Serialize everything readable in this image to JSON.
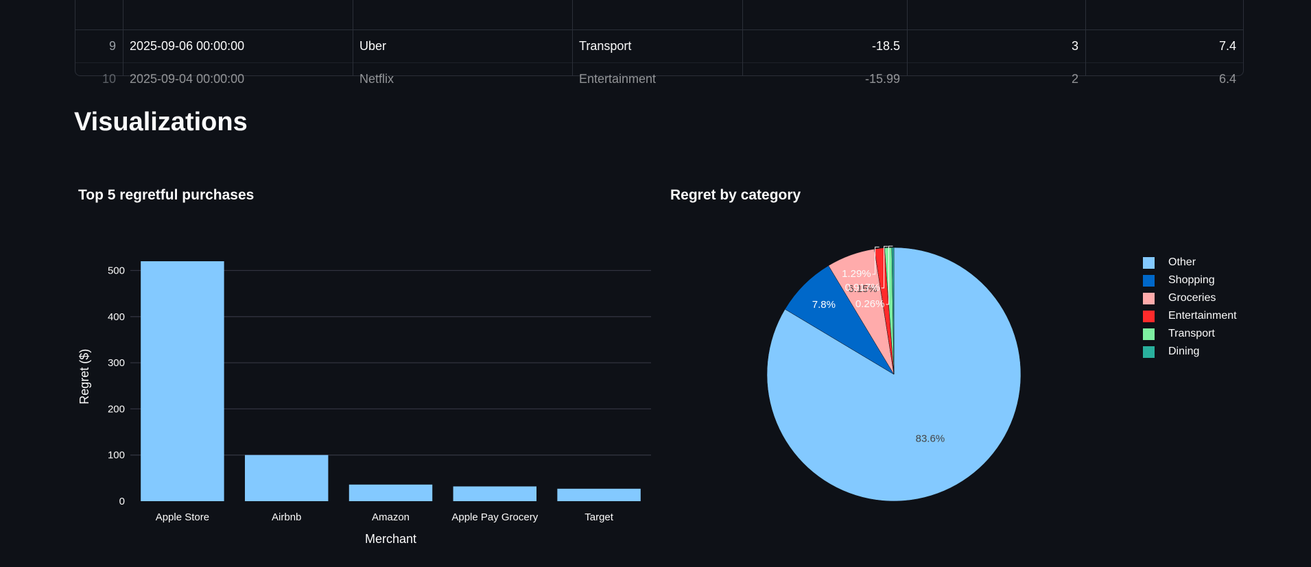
{
  "table": {
    "rows": [
      {
        "index": "9",
        "date": "2025-09-06 00:00:00",
        "merchant": "Uber",
        "category": "Transport",
        "amount": "-18.5",
        "col5": "3",
        "col6": "7.4"
      },
      {
        "index": "10",
        "date": "2025-09-04 00:00:00",
        "merchant": "Netflix",
        "category": "Entertainment",
        "amount": "-15.99",
        "col5": "2",
        "col6": "6.4"
      }
    ]
  },
  "section_title": "Visualizations",
  "bar_chart": {
    "title": "Top 5 regretful purchases"
  },
  "pie_chart": {
    "title": "Regret by category"
  },
  "colors": {
    "background": "#0e1117",
    "bar": "#83c9ff",
    "grid": "#31333f",
    "Other": "#83c9ff",
    "Shopping": "#0068c9",
    "Groceries": "#ffabab",
    "Entertainment": "#ff2b2b",
    "Transport": "#7defa1",
    "Dining": "#29b09d"
  },
  "chart_data": [
    {
      "type": "bar",
      "title": "Top 5 regretful purchases",
      "categories": [
        "Apple Store",
        "Airbnb",
        "Amazon",
        "Apple Pay Grocery",
        "Target"
      ],
      "values": [
        520,
        100,
        36,
        32,
        27
      ],
      "xlabel": "Merchant",
      "ylabel": "Regret ($)",
      "ylim": [
        0,
        540
      ],
      "yticks": [
        0,
        100,
        200,
        300,
        400,
        500
      ],
      "grid": true
    },
    {
      "type": "pie",
      "title": "Regret by category",
      "labels": [
        "Other",
        "Shopping",
        "Groceries",
        "Entertainment",
        "Transport",
        "Dining"
      ],
      "values": [
        83.6,
        7.8,
        6.15,
        1.29,
        0.917,
        0.26
      ],
      "text_labels": [
        "83.6%",
        "7.8%",
        "6.15%",
        "1.29%",
        "0.917%",
        "0.26%"
      ],
      "legend": "right"
    }
  ]
}
